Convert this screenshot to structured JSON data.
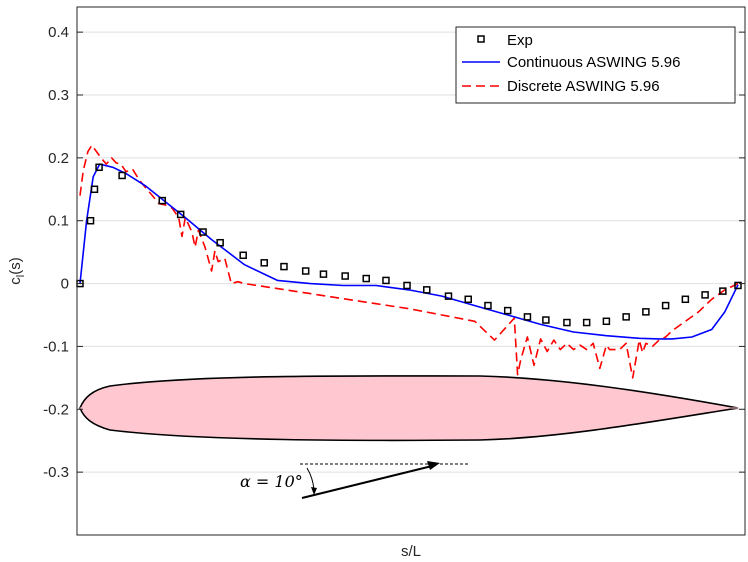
{
  "chart_data": {
    "type": "line",
    "xlabel": "s/L",
    "ylabel": "c_l(s)",
    "ylabel_main": "c",
    "ylabel_sub": "l",
    "ylabel_tail": "(s)",
    "xlim": [
      0,
      1
    ],
    "ylim": [
      -0.4,
      0.44
    ],
    "yticks": [
      -0.3,
      -0.2,
      -0.1,
      0,
      0.1,
      0.2,
      0.3,
      0.4
    ],
    "ytick_labels": [
      "-0.3",
      "-0.2",
      "-0.1",
      "0",
      "0.1",
      "0.2",
      "0.3",
      "0.4"
    ],
    "grid": "horizontal",
    "legend_position": "top-right",
    "series": [
      {
        "name": "Exp",
        "style": "square-markers",
        "color": "#000000",
        "x": [
          0.0,
          0.016,
          0.022,
          0.029,
          0.064,
          0.125,
          0.153,
          0.187,
          0.213,
          0.248,
          0.28,
          0.31,
          0.343,
          0.37,
          0.403,
          0.435,
          0.465,
          0.497,
          0.527,
          0.56,
          0.59,
          0.62,
          0.65,
          0.68,
          0.708,
          0.74,
          0.77,
          0.8,
          0.83,
          0.86,
          0.89,
          0.92,
          0.95,
          0.977,
          1.0
        ],
        "y": [
          0.0,
          0.1,
          0.15,
          0.185,
          0.172,
          0.132,
          0.11,
          0.082,
          0.065,
          0.045,
          0.033,
          0.027,
          0.02,
          0.015,
          0.012,
          0.008,
          0.005,
          -0.003,
          -0.01,
          -0.02,
          -0.025,
          -0.035,
          -0.043,
          -0.053,
          -0.058,
          -0.062,
          -0.062,
          -0.06,
          -0.053,
          -0.045,
          -0.035,
          -0.025,
          -0.018,
          -0.012,
          -0.003
        ]
      },
      {
        "name": "Continuous ASWING 5.96",
        "style": "solid",
        "color": "#0000ff",
        "x": [
          0.0,
          0.01,
          0.02,
          0.03,
          0.05,
          0.07,
          0.1,
          0.13,
          0.16,
          0.2,
          0.25,
          0.3,
          0.35,
          0.4,
          0.45,
          0.5,
          0.55,
          0.6,
          0.65,
          0.7,
          0.75,
          0.8,
          0.85,
          0.88,
          0.9,
          0.93,
          0.96,
          0.98,
          1.0
        ],
        "y": [
          0.0,
          0.1,
          0.17,
          0.19,
          0.185,
          0.175,
          0.155,
          0.13,
          0.105,
          0.07,
          0.03,
          0.005,
          0.0,
          -0.003,
          -0.003,
          -0.01,
          -0.02,
          -0.035,
          -0.05,
          -0.065,
          -0.077,
          -0.083,
          -0.087,
          -0.088,
          -0.088,
          -0.085,
          -0.073,
          -0.045,
          -0.002
        ]
      },
      {
        "name": "Discrete ASWING 5.96",
        "style": "dashed",
        "color": "#ff0000",
        "x": [
          0.0,
          0.005,
          0.012,
          0.018,
          0.025,
          0.032,
          0.04,
          0.048,
          0.055,
          0.062,
          0.07,
          0.08,
          0.09,
          0.1,
          0.11,
          0.12,
          0.13,
          0.14,
          0.15,
          0.155,
          0.16,
          0.17,
          0.175,
          0.18,
          0.19,
          0.2,
          0.205,
          0.21,
          0.22,
          0.23,
          0.24,
          0.25,
          0.3,
          0.35,
          0.4,
          0.45,
          0.5,
          0.55,
          0.6,
          0.63,
          0.66,
          0.665,
          0.67,
          0.68,
          0.69,
          0.7,
          0.71,
          0.72,
          0.73,
          0.74,
          0.75,
          0.76,
          0.77,
          0.78,
          0.79,
          0.8,
          0.805,
          0.81,
          0.82,
          0.83,
          0.84,
          0.85,
          0.855,
          0.86,
          0.87,
          0.88,
          0.89,
          0.9,
          0.92,
          0.94,
          0.96,
          0.98,
          1.0
        ],
        "y": [
          0.14,
          0.18,
          0.21,
          0.22,
          0.21,
          0.2,
          0.19,
          0.2,
          0.192,
          0.19,
          0.178,
          0.182,
          0.165,
          0.152,
          0.14,
          0.127,
          0.125,
          0.12,
          0.105,
          0.075,
          0.105,
          0.082,
          0.058,
          0.085,
          0.058,
          0.02,
          0.052,
          0.035,
          0.04,
          0.0,
          0.003,
          0.0,
          -0.008,
          -0.016,
          -0.024,
          -0.032,
          -0.04,
          -0.05,
          -0.06,
          -0.09,
          -0.055,
          -0.145,
          -0.12,
          -0.085,
          -0.13,
          -0.088,
          -0.108,
          -0.09,
          -0.105,
          -0.095,
          -0.105,
          -0.098,
          -0.105,
          -0.095,
          -0.135,
          -0.098,
          -0.105,
          -0.105,
          -0.105,
          -0.095,
          -0.15,
          -0.09,
          -0.11,
          -0.095,
          -0.1,
          -0.09,
          -0.085,
          -0.075,
          -0.06,
          -0.045,
          -0.025,
          -0.01,
          0.0
        ]
      }
    ],
    "annotation": {
      "text": "α = 10°",
      "airfoil_fill": "#ffc8d0",
      "airfoil_stroke": "#000000"
    }
  }
}
